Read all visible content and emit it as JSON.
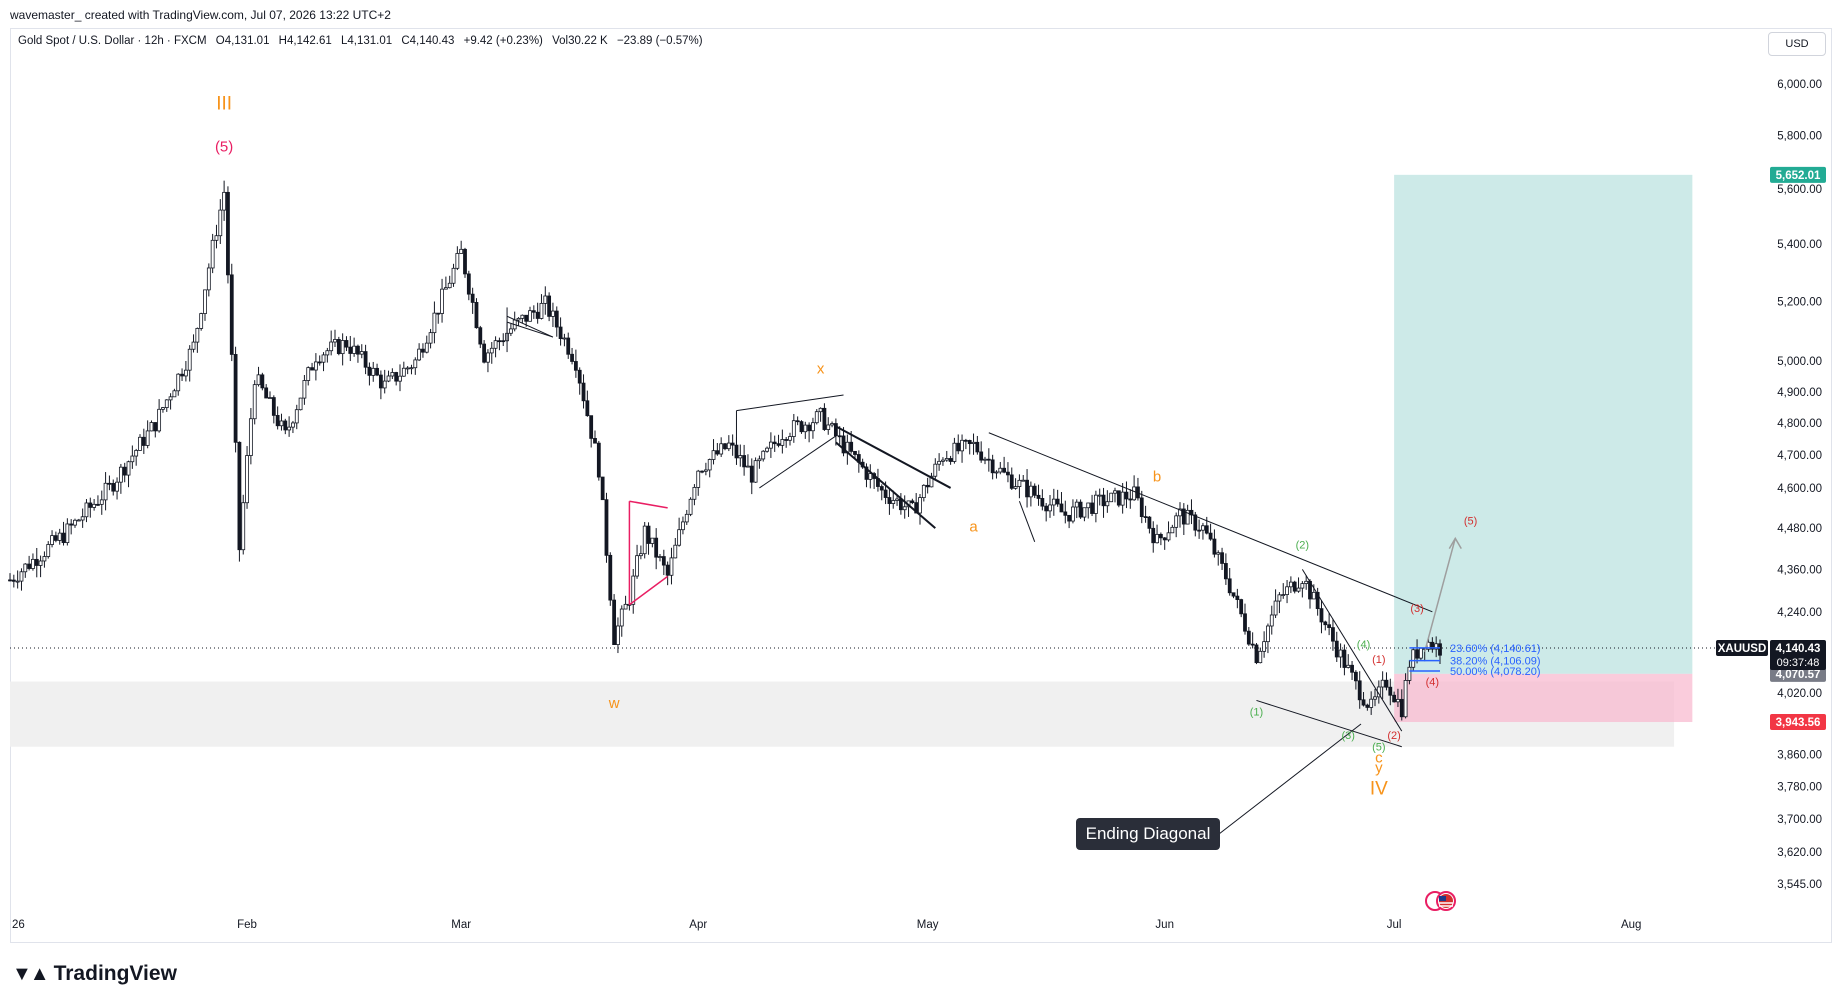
{
  "header": {
    "credit": "wavemaster_ created with TradingView.com, Jul 07, 2026 13:22 UTC+2"
  },
  "legend": {
    "symbol": "Gold Spot / U.S. Dollar · 12h · FXCM",
    "open": "O4,131.01",
    "high": "H4,142.61",
    "low": "L4,131.01",
    "close": "C4,140.43",
    "change": "+9.42 (+0.23%)",
    "volume": "Vol30.22 K",
    "vol_change": "−23.89 (−0.57%)"
  },
  "currency": "USD",
  "branding": {
    "logo_text": "TradingView"
  },
  "chart_data": {
    "type": "candlestick",
    "symbol": "XAUUSD",
    "scale": "log",
    "ylim": [
      3480,
      6100
    ],
    "price_ticks": [
      "6,000.00",
      "5,800.00",
      "5,600.00",
      "5,400.00",
      "5,200.00",
      "5,000.00",
      "4,900.00",
      "4,800.00",
      "4,700.00",
      "4,600.00",
      "4,480.00",
      "4,360.00",
      "4,240.00",
      "4,020.00",
      "3,860.00",
      "3,780.00",
      "3,700.00",
      "3,620.00",
      "3,545.00"
    ],
    "price_tick_values": [
      6000,
      5800,
      5600,
      5400,
      5200,
      5000,
      4900,
      4800,
      4700,
      4600,
      4480,
      4360,
      4240,
      4020,
      3860,
      3780,
      3700,
      3620,
      3545
    ],
    "date_ticks": [
      {
        "label": "26",
        "date": "2026-01-01"
      },
      {
        "label": "Feb",
        "date": "2026-02-01"
      },
      {
        "label": "Mar",
        "date": "2026-03-01"
      },
      {
        "label": "Apr",
        "date": "2026-04-01"
      },
      {
        "label": "May",
        "date": "2026-05-01"
      },
      {
        "label": "Jun",
        "date": "2026-06-01"
      },
      {
        "label": "Jul",
        "date": "2026-07-01"
      },
      {
        "label": "Aug",
        "date": "2026-08-01"
      }
    ],
    "x_start": "2026-01-01",
    "x_end": "2026-08-10",
    "price_path": [
      [
        "2026-01-01",
        4330
      ],
      [
        "2026-01-08",
        4460
      ],
      [
        "2026-01-14",
        4600
      ],
      [
        "2026-01-20",
        4800
      ],
      [
        "2026-01-25",
        5050
      ],
      [
        "2026-01-29",
        5590
      ],
      [
        "2026-01-31",
        4420
      ],
      [
        "2026-02-02",
        4950
      ],
      [
        "2026-02-06",
        4760
      ],
      [
        "2026-02-10",
        5020
      ],
      [
        "2026-02-14",
        5060
      ],
      [
        "2026-02-19",
        4920
      ],
      [
        "2026-02-23",
        5000
      ],
      [
        "2026-02-26",
        5180
      ],
      [
        "2026-03-01",
        5370
      ],
      [
        "2026-03-04",
        5020
      ],
      [
        "2026-03-08",
        5120
      ],
      [
        "2026-03-12",
        5190
      ],
      [
        "2026-03-16",
        5000
      ],
      [
        "2026-03-19",
        4660
      ],
      [
        "2026-03-21",
        4170
      ],
      [
        "2026-03-23",
        4280
      ],
      [
        "2026-03-25",
        4470
      ],
      [
        "2026-03-28",
        4340
      ],
      [
        "2026-04-01",
        4660
      ],
      [
        "2026-04-05",
        4730
      ],
      [
        "2026-04-08",
        4640
      ],
      [
        "2026-04-12",
        4770
      ],
      [
        "2026-04-17",
        4820
      ],
      [
        "2026-04-20",
        4730
      ],
      [
        "2026-04-25",
        4590
      ],
      [
        "2026-04-29",
        4530
      ],
      [
        "2026-05-03",
        4700
      ],
      [
        "2026-05-07",
        4730
      ],
      [
        "2026-05-11",
        4640
      ],
      [
        "2026-05-15",
        4580
      ],
      [
        "2026-05-19",
        4520
      ],
      [
        "2026-05-24",
        4560
      ],
      [
        "2026-05-28",
        4580
      ],
      [
        "2026-05-31",
        4440
      ],
      [
        "2026-06-03",
        4520
      ],
      [
        "2026-06-06",
        4480
      ],
      [
        "2026-06-09",
        4340
      ],
      [
        "2026-06-13",
        4120
      ],
      [
        "2026-06-16",
        4280
      ],
      [
        "2026-06-19",
        4340
      ],
      [
        "2026-06-23",
        4160
      ],
      [
        "2026-06-26",
        4040
      ],
      [
        "2026-06-28",
        3980
      ],
      [
        "2026-06-30",
        4050
      ],
      [
        "2026-07-02",
        3980
      ],
      [
        "2026-07-03",
        4100
      ],
      [
        "2026-07-05",
        4160
      ],
      [
        "2026-07-07",
        4140
      ]
    ],
    "current_price": {
      "symbol": "XAUUSD",
      "price": "4,140.43",
      "countdown": "09:37:48"
    },
    "price_badges": [
      {
        "price": "5,652.01",
        "role": "target",
        "color": "#22ab94"
      },
      {
        "price": "4,070.57",
        "role": "entry",
        "color": "#787b86"
      },
      {
        "price": "3,943.56",
        "role": "stop",
        "color": "#f23645"
      }
    ],
    "fib_levels": [
      {
        "label": "23.60% (4,140.61)",
        "price": 4140.61
      },
      {
        "label": "38.20% (4,106.09)",
        "price": 4106.09
      },
      {
        "label": "50.00% (4,078.20)",
        "price": 4078.2
      }
    ],
    "annotations": {
      "orange": [
        {
          "text": "III",
          "date": "2026-01-29",
          "price": 5900
        },
        {
          "text": "x",
          "date": "2026-04-17",
          "price": 4960
        },
        {
          "text": "a",
          "date": "2026-05-07",
          "price": 4470
        },
        {
          "text": "b",
          "date": "2026-05-31",
          "price": 4620
        },
        {
          "text": "w",
          "date": "2026-03-21",
          "price": 3980
        },
        {
          "text": "c",
          "date": "2026-06-29",
          "price": 3840
        },
        {
          "text": "y",
          "date": "2026-06-29",
          "price": 3815
        },
        {
          "text": "IV",
          "date": "2026-06-29",
          "price": 3760
        }
      ],
      "pink": [
        {
          "text": "(5)",
          "date": "2026-01-29",
          "price": 5740
        }
      ],
      "green": [
        {
          "text": "(2)",
          "date": "2026-06-19",
          "price": 4420
        },
        {
          "text": "(1)",
          "date": "2026-06-13",
          "price": 3960
        },
        {
          "text": "(4)",
          "date": "2026-06-27",
          "price": 4140
        },
        {
          "text": "(3)",
          "date": "2026-06-25",
          "price": 3900
        },
        {
          "text": "(5)",
          "date": "2026-06-29",
          "price": 3870
        }
      ],
      "red": [
        {
          "text": "(1)",
          "date": "2026-06-29",
          "price": 4100
        },
        {
          "text": "(2)",
          "date": "2026-07-01",
          "price": 3900
        },
        {
          "text": "(3)",
          "date": "2026-07-04",
          "price": 4240
        },
        {
          "text": "(4)",
          "date": "2026-07-06",
          "price": 4040
        },
        {
          "text": "(5)",
          "date": "2026-07-11",
          "price": 4490
        }
      ]
    },
    "ending_diagonal_label": "Ending Diagonal",
    "colors": {
      "up": "#089981",
      "down": "#131722",
      "orange": "#f7931a",
      "pink": "#e91e63",
      "green": "#4caf50",
      "red": "#d32f2f",
      "target_zone": "#b2dfdb",
      "stop_zone": "#f8bbd0",
      "support_zone": "#f0f0f0"
    }
  }
}
